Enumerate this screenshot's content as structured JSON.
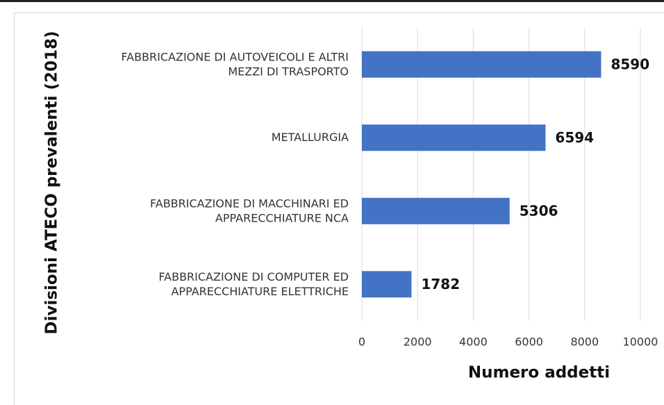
{
  "chart_data": {
    "type": "bar",
    "orientation": "horizontal",
    "x_label": "Numero addetti",
    "y_label": "Divisioni ATECO prevalenti (2018)",
    "categories": [
      "FABBRICAZIONE DI AUTOVEICOLI E ALTRI\nMEZZI DI TRASPORTO",
      "METALLURGIA",
      "FABBRICAZIONE DI MACCHINARI ED\nAPPARECCHIATURE NCA",
      "FABBRICAZIONE DI COMPUTER ED\nAPPARECCHIATURE ELETTRICHE"
    ],
    "values": [
      8590,
      6594,
      5306,
      1782
    ],
    "color": "#4472c4",
    "xlim": [
      0,
      10000
    ],
    "xticks": [
      0,
      2000,
      4000,
      6000,
      8000,
      10000
    ],
    "grid": true
  }
}
